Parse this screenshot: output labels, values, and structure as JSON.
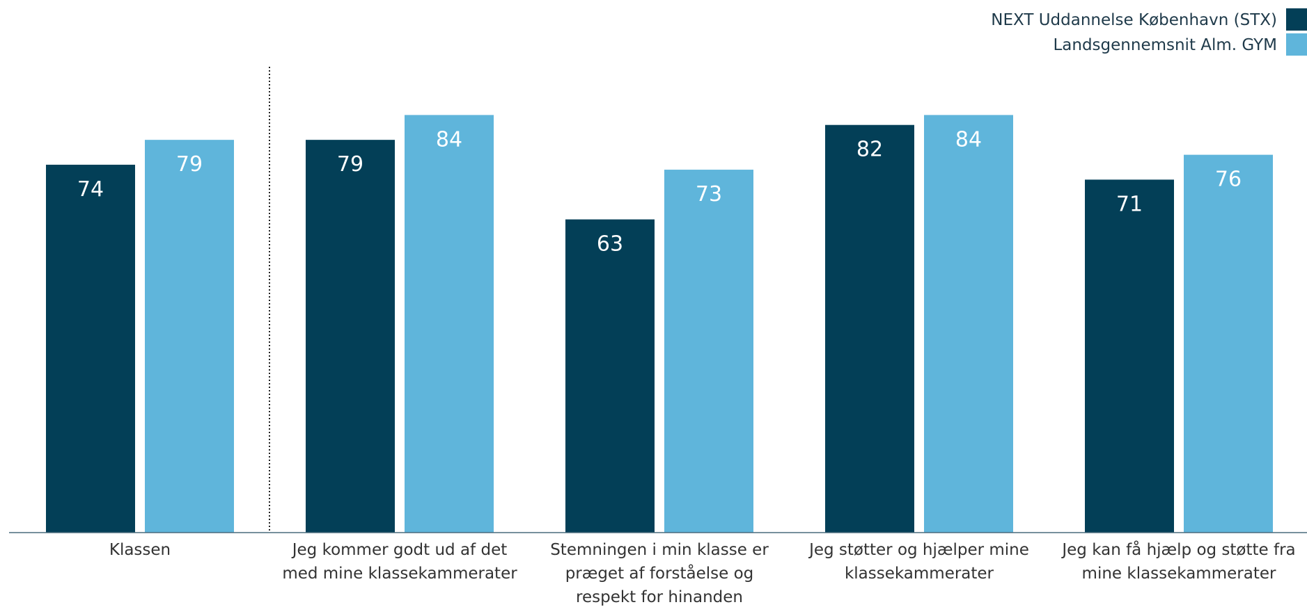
{
  "chart_data": {
    "type": "bar",
    "categories": [
      "Klassen",
      "Jeg kommer godt ud af det med mine klassekammerater",
      "Stemningen i min klasse er præget af forståelse og respekt for hinanden",
      "Jeg støtter og hjælper mine klassekammerater",
      "Jeg kan få hjælp og støtte fra mine klassekammerater"
    ],
    "category_lines": [
      [
        "Klassen"
      ],
      [
        "Jeg kommer godt ud af det",
        "med mine klassekammerater"
      ],
      [
        "Stemningen i min klasse er",
        "præget af forståelse og",
        "respekt for hinanden"
      ],
      [
        "Jeg støtter og hjælper mine",
        "klassekammerater"
      ],
      [
        "Jeg kan få hjælp og støtte fra",
        "mine klassekammerater"
      ]
    ],
    "series": [
      {
        "name": "NEXT Uddannelse København (STX)",
        "color": "#033f57",
        "values": [
          74,
          79,
          63,
          82,
          71
        ]
      },
      {
        "name": "Landsgennemsnit Alm. GYM",
        "color": "#5fb5db",
        "values": [
          79,
          84,
          73,
          84,
          76
        ]
      }
    ],
    "ylim": [
      0,
      100
    ],
    "grid": false,
    "legend_position": "top-right",
    "separator_after_category": 0,
    "axis_color": "#4a6b7d"
  }
}
